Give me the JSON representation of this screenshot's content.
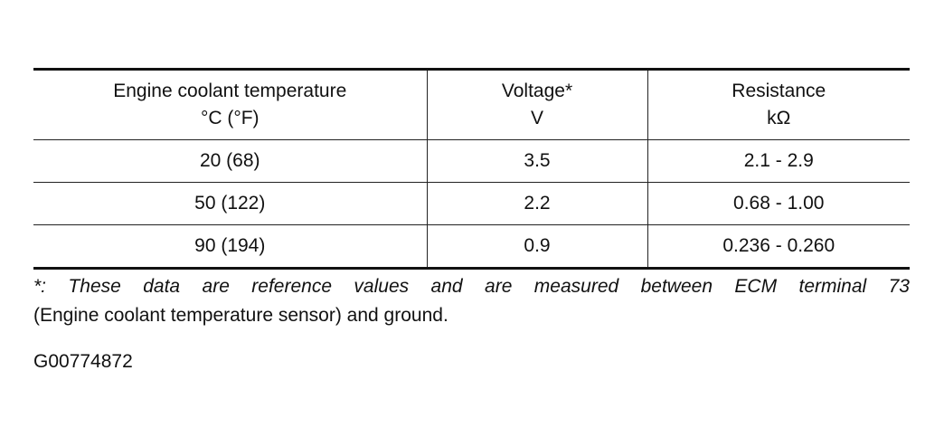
{
  "table": {
    "header": [
      [
        "Engine coolant temperature",
        "°C (°F)"
      ],
      [
        "Voltage*",
        "V"
      ],
      [
        "Resistance",
        "kΩ"
      ]
    ],
    "rows": [
      [
        "20 (68)",
        "3.5",
        "2.1 - 2.9"
      ],
      [
        "50 (122)",
        "2.2",
        "0.68 - 1.00"
      ],
      [
        "90 (194)",
        "0.9",
        "0.236 - 0.260"
      ]
    ]
  },
  "footnote": {
    "lines": [
      "*: These data are reference values and are measured between ECM terminal 73",
      "(Engine coolant temperature sensor) and ground."
    ]
  },
  "code": "G00774872"
}
